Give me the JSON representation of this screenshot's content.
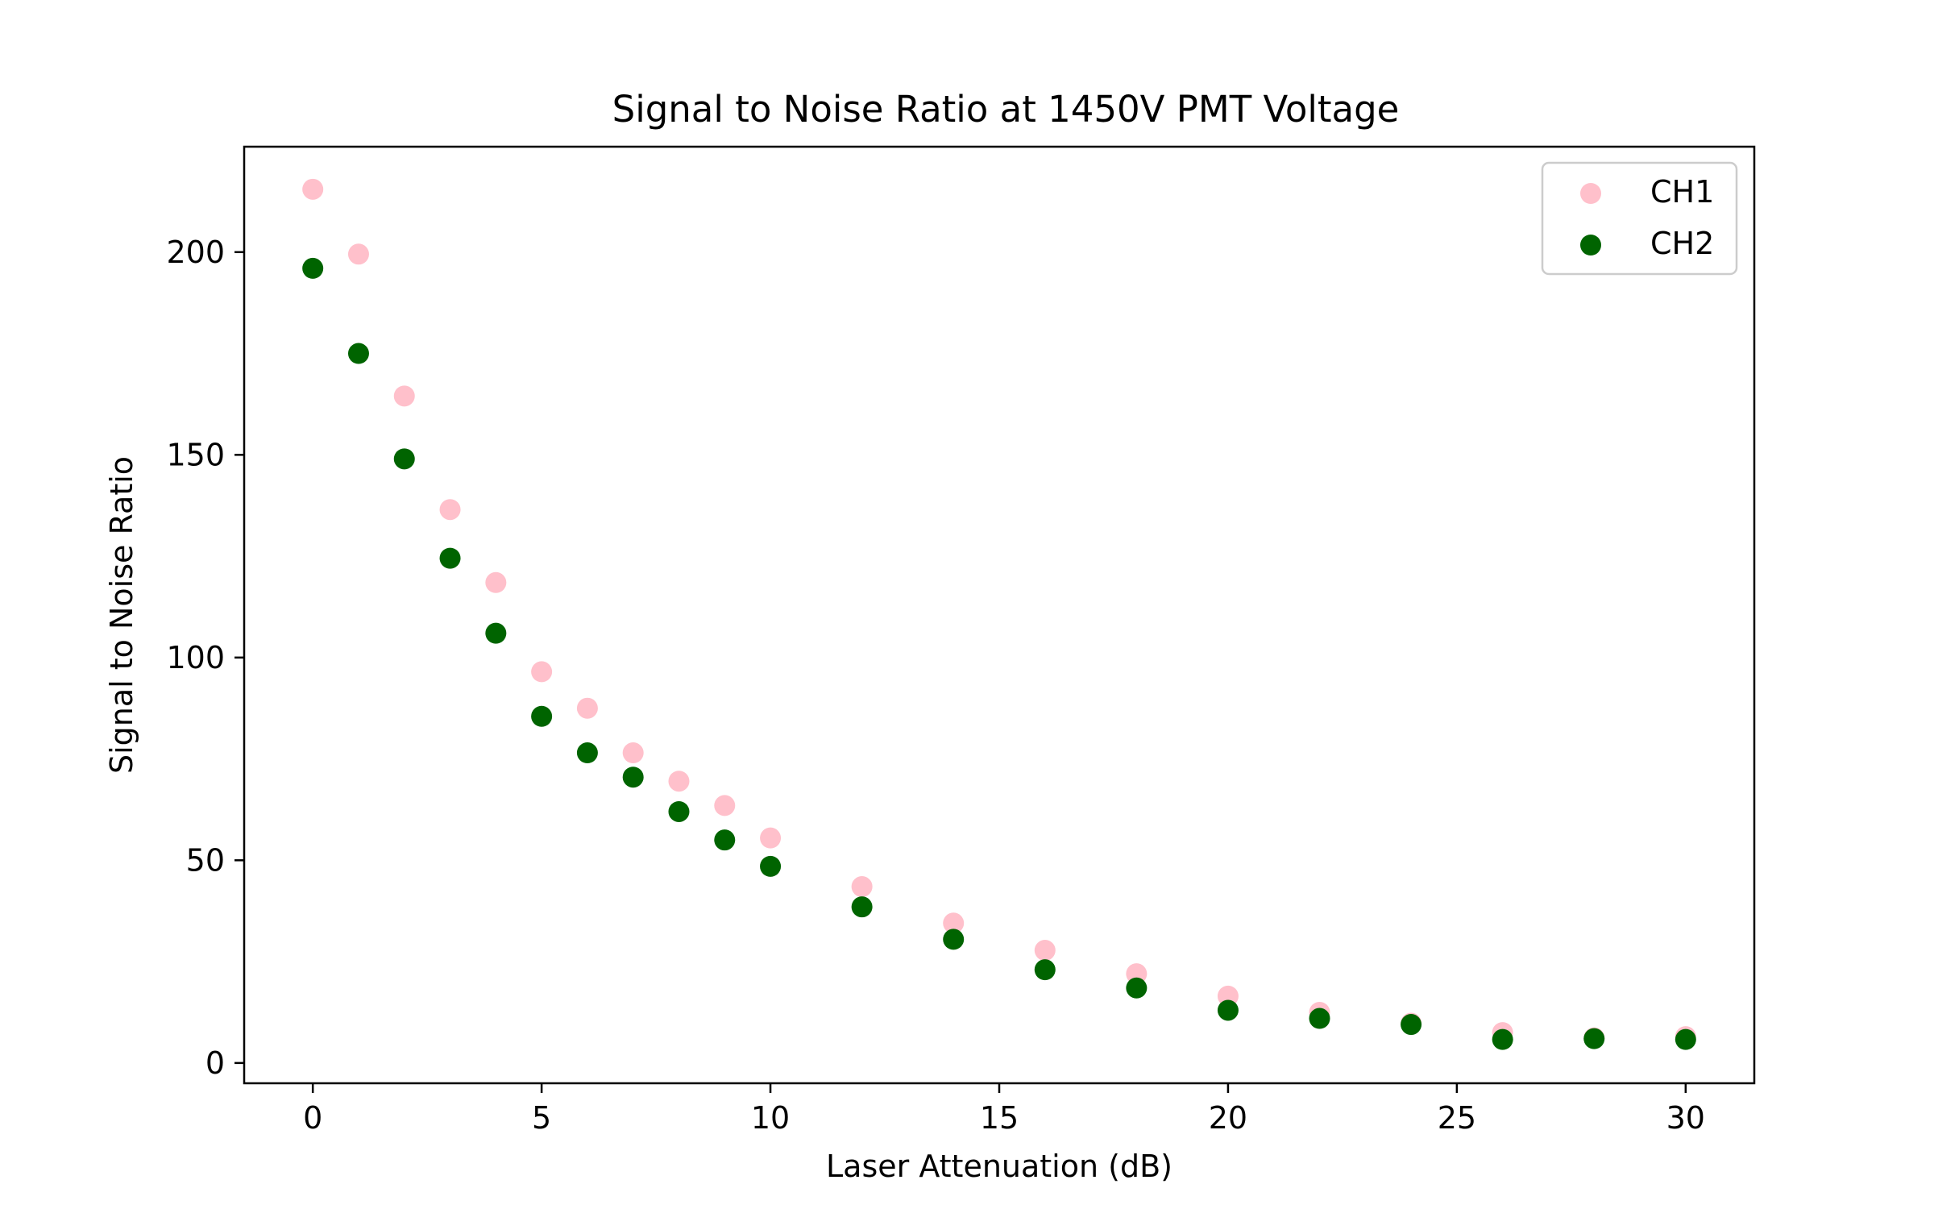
{
  "chart_data": {
    "type": "scatter",
    "title": "Signal to Noise Ratio at 1450V PMT Voltage",
    "xlabel": "Laser Attenuation (dB)",
    "ylabel": "Signal to Noise Ratio",
    "xlim": [
      -1.5,
      31.5
    ],
    "ylim": [
      -5,
      226
    ],
    "xticks": [
      0,
      5,
      10,
      15,
      20,
      25,
      30
    ],
    "yticks": [
      0,
      50,
      100,
      150,
      200
    ],
    "grid": false,
    "legend_position": "top-right",
    "x": [
      0,
      1,
      2,
      3,
      4,
      5,
      6,
      7,
      8,
      9,
      10,
      12,
      14,
      16,
      18,
      20,
      22,
      24,
      26,
      28,
      30
    ],
    "series": [
      {
        "name": "CH1",
        "color": "#ffc0cb",
        "values": [
          215.5,
          199.5,
          164.5,
          136.5,
          118.5,
          96.5,
          87.5,
          76.5,
          69.5,
          63.5,
          55.5,
          43.5,
          34.5,
          27.8,
          22.0,
          16.5,
          12.5,
          9.8,
          7.5,
          6.2,
          6.5
        ]
      },
      {
        "name": "CH2",
        "color": "#006400",
        "values": [
          196.0,
          175.0,
          149.0,
          124.5,
          106.0,
          85.5,
          76.5,
          70.5,
          62.0,
          55.0,
          48.5,
          38.5,
          30.5,
          23.0,
          18.5,
          13.0,
          11.0,
          9.5,
          5.8,
          6.0,
          5.8
        ]
      }
    ]
  }
}
